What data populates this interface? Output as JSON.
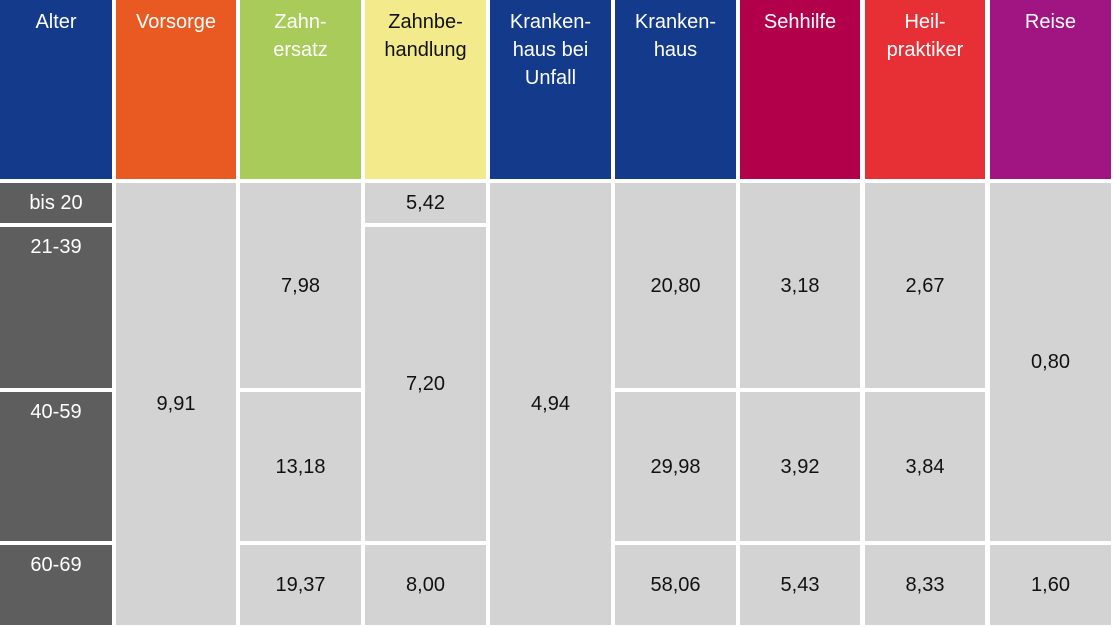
{
  "header": [
    "Alter",
    "Vorsorge",
    "Zahn-\nersatz",
    "Zahnbe-\nhandlung",
    "Kranken-\nhaus bei\nUnfall",
    "Kranken-\nhaus",
    "Sehhilfe",
    "Heil-\npraktiker",
    "Reise"
  ],
  "ages": [
    "bis 20",
    "21-39",
    "40-59",
    "60-69"
  ],
  "columns": [
    [
      "9,91"
    ],
    [
      "7,98",
      "13,18",
      "19,37"
    ],
    [
      "5,42",
      "7,20",
      "8,00"
    ],
    [
      "4,94"
    ],
    [
      "20,80",
      "29,98",
      "58,06"
    ],
    [
      "3,18",
      "3,92",
      "5,43"
    ],
    [
      "2,67",
      "3,84",
      "8,33"
    ],
    [
      "0,80",
      "1,60"
    ]
  ]
}
